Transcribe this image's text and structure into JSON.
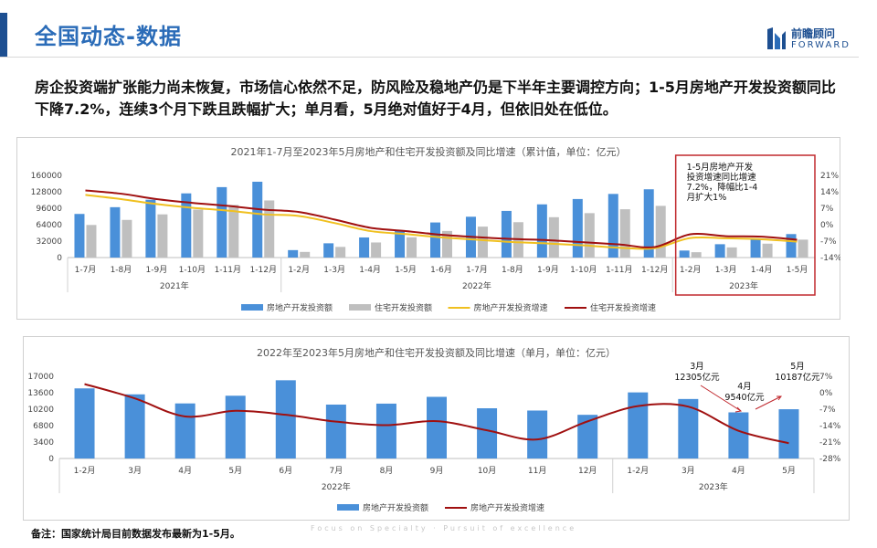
{
  "header": {
    "title": "全国动态-数据",
    "logo_cn": "前瞻顾问",
    "logo_en": "FORWARD"
  },
  "summary": "房企投资端扩张能力尚未恢复，市场信心依然不足，防风险及稳地产仍是下半年主要调控方向；1-5月房地产开发投资额同比下降7.2%，连续3个月下跌且跌幅扩大；单月看，5月绝对值好于4月，但依旧处在低位。",
  "footnote": "备注：国家统计局目前数据发布最新为1-5月。",
  "watermark": "Focus on Specialty · Pursuit of excellence",
  "colors": {
    "bar_primary": "#4a90d9",
    "bar_secondary": "#bfbfbf",
    "line_yellow": "#f0c020",
    "line_red": "#a01010",
    "highlight_box": "#c0282d"
  },
  "chart_data": [
    {
      "type": "bar",
      "title": "2021年1-7月至2023年5月房地产和住宅开发投资额及同比增速（累计值，单位：亿元）",
      "categories": [
        "1-7月",
        "1-8月",
        "1-9月",
        "1-10月",
        "1-11月",
        "1-12月",
        "1-2月",
        "1-3月",
        "1-4月",
        "1-5月",
        "1-6月",
        "1-7月",
        "1-8月",
        "1-9月",
        "1-10月",
        "1-11月",
        "1-12月",
        "1-2月",
        "1-3月",
        "1-4月",
        "1-5月"
      ],
      "groups": [
        {
          "label": "2021年",
          "count": 6
        },
        {
          "label": "2022年",
          "count": 11
        },
        {
          "label": "2023年",
          "count": 4
        }
      ],
      "series": [
        {
          "name": "房地产开发投资额",
          "kind": "bar",
          "axis": "left",
          "values": [
            84895,
            98060,
            112559,
            124934,
            137086,
            147602,
            14499,
            27765,
            39154,
            52134,
            68314,
            79462,
            90809,
            103559,
            113945,
            123863,
            132895,
            13669,
            25974,
            35514,
            45701
          ]
        },
        {
          "name": "住宅开发投资额",
          "kind": "bar",
          "axis": "left",
          "values": [
            63442,
            73294,
            84094,
            93330,
            102433,
            111173,
            10988,
            20761,
            29385,
            39521,
            51804,
            60246,
            68878,
            78556,
            86468,
            94037,
            100646,
            10420,
            19767,
            26995,
            34890
          ]
        },
        {
          "name": "房地产开发投资增速",
          "kind": "line",
          "axis": "right",
          "values": [
            12.7,
            10.9,
            8.8,
            7.2,
            6.0,
            4.4,
            3.7,
            0.7,
            -2.7,
            -4.0,
            -5.4,
            -6.4,
            -7.4,
            -8.0,
            -8.8,
            -9.8,
            -10.0,
            -5.7,
            -5.8,
            -6.2,
            -7.2
          ]
        },
        {
          "name": "住宅开发投资增速",
          "kind": "line",
          "axis": "right",
          "values": [
            14.6,
            13.2,
            10.9,
            9.3,
            8.0,
            6.4,
            5.4,
            2.2,
            -1.3,
            -2.7,
            -4.3,
            -5.3,
            -6.1,
            -6.6,
            -7.5,
            -8.4,
            -9.5,
            -4.1,
            -4.9,
            -5.1,
            -6.4
          ]
        }
      ],
      "left_axis": {
        "ticks": [
          "0",
          "32000",
          "64000",
          "96000",
          "128000",
          "160000"
        ],
        "ylim": [
          0,
          160000
        ]
      },
      "right_axis": {
        "ticks": [
          "21%",
          "14%",
          "7%",
          "0%",
          "-7%",
          "-14%"
        ],
        "ylim": [
          -14,
          21
        ]
      },
      "grid": false,
      "legend_position": "bottom",
      "annotation": "1-5月房地产开发投资增速同比增速7.2%，降幅比1-4月扩大1%"
    },
    {
      "type": "bar",
      "title": "2022年至2023年5月房地产和住宅开发投资额及同比增速（单月，单位：亿元）",
      "categories": [
        "1-2月",
        "3月",
        "4月",
        "5月",
        "6月",
        "7月",
        "8月",
        "9月",
        "10月",
        "11月",
        "12月",
        "1-2月",
        "3月",
        "4月",
        "5月"
      ],
      "groups": [
        {
          "label": "2022年",
          "count": 11
        },
        {
          "label": "2023年",
          "count": 4
        }
      ],
      "series": [
        {
          "name": "房地产开发投资额",
          "kind": "bar",
          "axis": "left",
          "values": [
            14499,
            13266,
            11389,
            12980,
            16180,
            11148,
            11347,
            12750,
            10386,
            9918,
            9032,
            13669,
            12305,
            9540,
            10187
          ]
        },
        {
          "name": "房地产开发投资增速",
          "kind": "line",
          "axis": "right",
          "values": [
            3.7,
            -2.4,
            -10.1,
            -7.7,
            -9.4,
            -12.3,
            -13.8,
            -12.1,
            -16.0,
            -19.9,
            -12.2,
            -5.7,
            -5.9,
            -16.2,
            -21.5
          ]
        }
      ],
      "left_axis": {
        "ticks": [
          "0",
          "3400",
          "6800",
          "10200",
          "13600",
          "17000"
        ],
        "ylim": [
          0,
          17000
        ]
      },
      "right_axis": {
        "ticks": [
          "7%",
          "0%",
          "-7%",
          "-14%",
          "-21%",
          "-28%"
        ],
        "ylim": [
          -28,
          7
        ]
      },
      "grid": false,
      "legend_position": "bottom",
      "callouts": [
        {
          "month": "3月",
          "value": "12305亿元"
        },
        {
          "month": "4月",
          "value": "9540亿元"
        },
        {
          "month": "5月",
          "value": "10187亿元"
        }
      ]
    }
  ]
}
